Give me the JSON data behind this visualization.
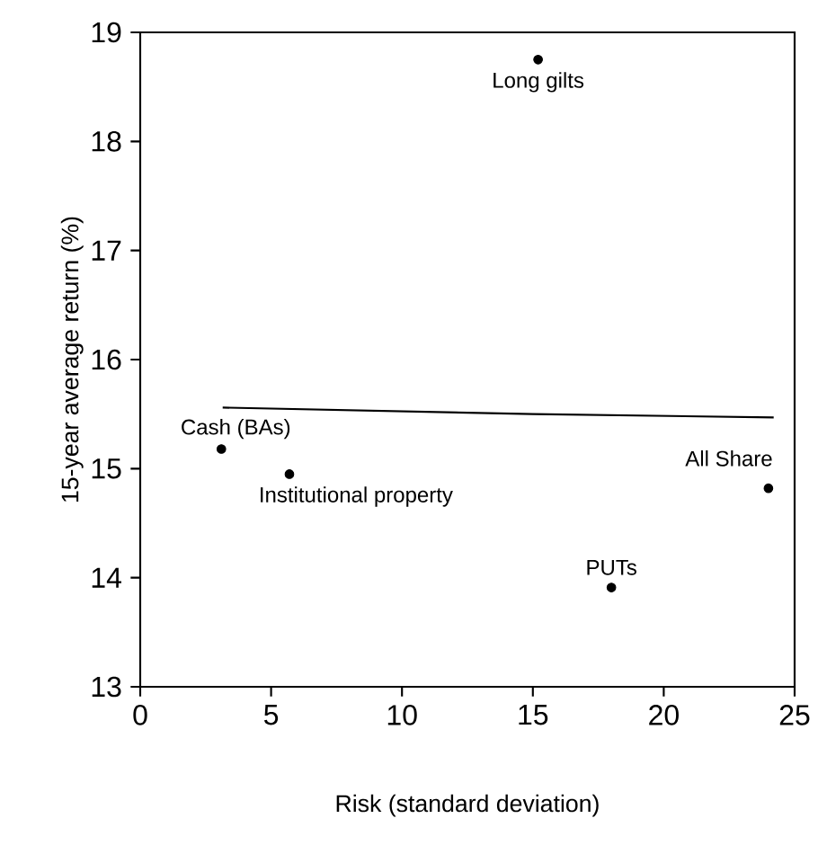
{
  "chart_data": {
    "type": "scatter",
    "xlabel": "Risk (standard deviation)",
    "ylabel": "15-year average return (%)",
    "xlim": [
      0,
      25
    ],
    "ylim": [
      13,
      19
    ],
    "xticks": [
      0,
      5,
      10,
      15,
      20,
      25
    ],
    "yticks": [
      13,
      14,
      15,
      16,
      17,
      18,
      19
    ],
    "grid": false,
    "series": [
      {
        "color": "#000000",
        "x": [
          15.2,
          3.1,
          5.7,
          18.0,
          24.0
        ],
        "values": [
          18.75,
          15.18,
          14.95,
          13.91,
          14.82
        ]
      },
      {
        "type": "line",
        "color": "#000000",
        "x": [
          3.15,
          15,
          24.2
        ],
        "values": [
          15.56,
          15.5,
          15.47
        ]
      }
    ],
    "annotations": [
      {
        "text": "Long gilts",
        "x": 15.2,
        "y": 18.75
      },
      {
        "text": "Cash (BAs)",
        "x": 3.1,
        "y": 15.18
      },
      {
        "text": "Institutional property",
        "x": 5.7,
        "y": 14.95
      },
      {
        "text": "PUTs",
        "x": 18.0,
        "y": 13.91
      },
      {
        "text": "All Share",
        "x": 24.0,
        "y": 14.82
      }
    ]
  }
}
